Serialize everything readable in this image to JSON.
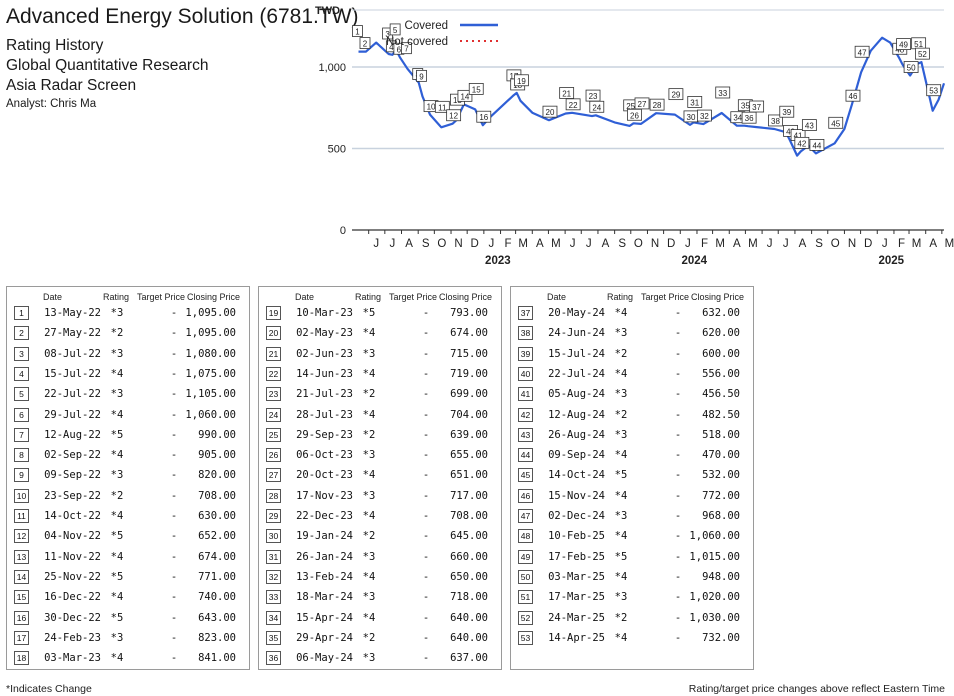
{
  "header": {
    "title": "Advanced Energy Solution (6781.TW)",
    "line1": "Rating History",
    "line2": "Global Quantitative Research",
    "line3": "Asia Radar Screen",
    "analyst": "Analyst: Chris Ma"
  },
  "footer": {
    "left": "*Indicates Change",
    "right": "Rating/target price changes above reflect Eastern Time"
  },
  "table_headers": {
    "date": "Date",
    "rating": "Rating",
    "target": "Target Price",
    "close": "Closing Price"
  },
  "colors": {
    "covered": "#2f5fd6",
    "not_covered": "#e03030",
    "grid": "#c8d2de",
    "axis": "#333333"
  },
  "chart_data": {
    "type": "line",
    "y_unit_label": "TWD",
    "ylim": [
      0,
      1350
    ],
    "yticks": [
      0,
      500,
      "1,000"
    ],
    "x_range": [
      "2022-05-01",
      "2025-05-05"
    ],
    "month_ticks": [
      "J",
      "J",
      "A",
      "S",
      "O",
      "N",
      "D",
      "J",
      "F",
      "M",
      "A",
      "M",
      "J",
      "J",
      "A",
      "S",
      "O",
      "N",
      "D",
      "J",
      "F",
      "M",
      "A",
      "M",
      "J",
      "J",
      "A",
      "S",
      "O",
      "N",
      "D",
      "J",
      "F",
      "M",
      "A",
      "M"
    ],
    "year_labels": [
      "2023",
      "2024",
      "2025"
    ],
    "legend": [
      {
        "name": "Covered",
        "style": "solid"
      },
      {
        "name": "Not covered",
        "style": "dotted"
      }
    ],
    "series": [
      {
        "name": "Covered",
        "x": [
          "2022-05-13",
          "2022-05-27",
          "2022-06-15",
          "2022-07-08",
          "2022-07-15",
          "2022-07-22",
          "2022-07-29",
          "2022-08-12",
          "2022-09-02",
          "2022-09-09",
          "2022-09-23",
          "2022-10-14",
          "2022-11-04",
          "2022-11-11",
          "2022-11-25",
          "2022-12-16",
          "2022-12-30",
          "2023-01-15",
          "2023-02-24",
          "2023-03-03",
          "2023-03-10",
          "2023-04-01",
          "2023-05-02",
          "2023-06-02",
          "2023-06-14",
          "2023-07-21",
          "2023-07-28",
          "2023-09-01",
          "2023-09-29",
          "2023-10-06",
          "2023-10-20",
          "2023-11-17",
          "2023-12-22",
          "2024-01-19",
          "2024-01-26",
          "2024-02-13",
          "2024-03-18",
          "2024-04-15",
          "2024-04-29",
          "2024-05-06",
          "2024-05-20",
          "2024-06-24",
          "2024-07-15",
          "2024-07-22",
          "2024-08-05",
          "2024-08-12",
          "2024-08-26",
          "2024-09-09",
          "2024-10-14",
          "2024-11-01",
          "2024-11-15",
          "2024-12-02",
          "2024-12-20",
          "2025-01-10",
          "2025-01-25",
          "2025-02-10",
          "2025-02-17",
          "2025-03-03",
          "2025-03-17",
          "2025-03-24",
          "2025-04-14",
          "2025-04-25",
          "2025-05-05"
        ],
        "y": [
          1095,
          1095,
          1150,
          1080,
          1075,
          1105,
          1060,
          990,
          905,
          820,
          708,
          630,
          652,
          674,
          771,
          740,
          643,
          700,
          823,
          841,
          793,
          720,
          674,
          715,
          719,
          699,
          704,
          660,
          639,
          655,
          651,
          717,
          708,
          645,
          660,
          650,
          718,
          640,
          640,
          637,
          632,
          620,
          600,
          556,
          456.5,
          482.5,
          518,
          470,
          532,
          620,
          772,
          968,
          1100,
          1180,
          1150,
          1060,
          1015,
          948,
          1020,
          1030,
          732,
          800,
          900
        ]
      }
    ],
    "rating_points": [
      {
        "n": "1",
        "date": "13-May-22",
        "rating": "*3",
        "target": "-",
        "close": "1,095.00",
        "x": "2022-05-13",
        "y": 1095
      },
      {
        "n": "2",
        "date": "27-May-22",
        "rating": "*2",
        "target": "-",
        "close": "1,095.00",
        "x": "2022-05-27",
        "y": 1095
      },
      {
        "n": "3",
        "date": "08-Jul-22",
        "rating": "*3",
        "target": "-",
        "close": "1,080.00",
        "x": "2022-07-08",
        "y": 1080
      },
      {
        "n": "4",
        "date": "15-Jul-22",
        "rating": "*4",
        "target": "-",
        "close": "1,075.00",
        "x": "2022-07-15",
        "y": 1075
      },
      {
        "n": "5",
        "date": "22-Jul-22",
        "rating": "*3",
        "target": "-",
        "close": "1,105.00",
        "x": "2022-07-22",
        "y": 1105
      },
      {
        "n": "6",
        "date": "29-Jul-22",
        "rating": "*4",
        "target": "-",
        "close": "1,060.00",
        "x": "2022-07-29",
        "y": 1060
      },
      {
        "n": "7",
        "date": "12-Aug-22",
        "rating": "*5",
        "target": "-",
        "close": "990.00",
        "x": "2022-08-12",
        "y": 990
      },
      {
        "n": "8",
        "date": "02-Sep-22",
        "rating": "*4",
        "target": "-",
        "close": "905.00",
        "x": "2022-09-02",
        "y": 905
      },
      {
        "n": "9",
        "date": "09-Sep-22",
        "rating": "*3",
        "target": "-",
        "close": "820.00",
        "x": "2022-09-09",
        "y": 820
      },
      {
        "n": "10",
        "date": "23-Sep-22",
        "rating": "*2",
        "target": "-",
        "close": "708.00",
        "x": "2022-09-23",
        "y": 708
      },
      {
        "n": "11",
        "date": "14-Oct-22",
        "rating": "*4",
        "target": "-",
        "close": "630.00",
        "x": "2022-10-14",
        "y": 630
      },
      {
        "n": "12",
        "date": "04-Nov-22",
        "rating": "*5",
        "target": "-",
        "close": "652.00",
        "x": "2022-11-04",
        "y": 652
      },
      {
        "n": "13",
        "date": "11-Nov-22",
        "rating": "*4",
        "target": "-",
        "close": "674.00",
        "x": "2022-11-11",
        "y": 674
      },
      {
        "n": "14",
        "date": "25-Nov-22",
        "rating": "*5",
        "target": "-",
        "close": "771.00",
        "x": "2022-11-25",
        "y": 771
      },
      {
        "n": "15",
        "date": "16-Dec-22",
        "rating": "*4",
        "target": "-",
        "close": "740.00",
        "x": "2022-12-16",
        "y": 740
      },
      {
        "n": "16",
        "date": "30-Dec-22",
        "rating": "*5",
        "target": "-",
        "close": "643.00",
        "x": "2022-12-30",
        "y": 643
      },
      {
        "n": "17",
        "date": "24-Feb-23",
        "rating": "*3",
        "target": "-",
        "close": "823.00",
        "x": "2023-02-24",
        "y": 823
      },
      {
        "n": "18",
        "date": "03-Mar-23",
        "rating": "*4",
        "target": "-",
        "close": "841.00",
        "x": "2023-03-03",
        "y": 841
      },
      {
        "n": "19",
        "date": "10-Mar-23",
        "rating": "*5",
        "target": "-",
        "close": "793.00",
        "x": "2023-03-10",
        "y": 793
      },
      {
        "n": "20",
        "date": "02-May-23",
        "rating": "*4",
        "target": "-",
        "close": "674.00",
        "x": "2023-05-02",
        "y": 674
      },
      {
        "n": "21",
        "date": "02-Jun-23",
        "rating": "*3",
        "target": "-",
        "close": "715.00",
        "x": "2023-06-02",
        "y": 715
      },
      {
        "n": "22",
        "date": "14-Jun-23",
        "rating": "*4",
        "target": "-",
        "close": "719.00",
        "x": "2023-06-14",
        "y": 719
      },
      {
        "n": "23",
        "date": "21-Jul-23",
        "rating": "*2",
        "target": "-",
        "close": "699.00",
        "x": "2023-07-21",
        "y": 699
      },
      {
        "n": "24",
        "date": "28-Jul-23",
        "rating": "*4",
        "target": "-",
        "close": "704.00",
        "x": "2023-07-28",
        "y": 704
      },
      {
        "n": "25",
        "date": "29-Sep-23",
        "rating": "*2",
        "target": "-",
        "close": "639.00",
        "x": "2023-09-29",
        "y": 639
      },
      {
        "n": "26",
        "date": "06-Oct-23",
        "rating": "*3",
        "target": "-",
        "close": "655.00",
        "x": "2023-10-06",
        "y": 655
      },
      {
        "n": "27",
        "date": "20-Oct-23",
        "rating": "*4",
        "target": "-",
        "close": "651.00",
        "x": "2023-10-20",
        "y": 651
      },
      {
        "n": "28",
        "date": "17-Nov-23",
        "rating": "*3",
        "target": "-",
        "close": "717.00",
        "x": "2023-11-17",
        "y": 717
      },
      {
        "n": "29",
        "date": "22-Dec-23",
        "rating": "*4",
        "target": "-",
        "close": "708.00",
        "x": "2023-12-22",
        "y": 708
      },
      {
        "n": "30",
        "date": "19-Jan-24",
        "rating": "*2",
        "target": "-",
        "close": "645.00",
        "x": "2024-01-19",
        "y": 645
      },
      {
        "n": "31",
        "date": "26-Jan-24",
        "rating": "*3",
        "target": "-",
        "close": "660.00",
        "x": "2024-01-26",
        "y": 660
      },
      {
        "n": "32",
        "date": "13-Feb-24",
        "rating": "*4",
        "target": "-",
        "close": "650.00",
        "x": "2024-02-13",
        "y": 650
      },
      {
        "n": "33",
        "date": "18-Mar-24",
        "rating": "*3",
        "target": "-",
        "close": "718.00",
        "x": "2024-03-18",
        "y": 718
      },
      {
        "n": "34",
        "date": "15-Apr-24",
        "rating": "*4",
        "target": "-",
        "close": "640.00",
        "x": "2024-04-15",
        "y": 640
      },
      {
        "n": "35",
        "date": "29-Apr-24",
        "rating": "*2",
        "target": "-",
        "close": "640.00",
        "x": "2024-04-29",
        "y": 640
      },
      {
        "n": "36",
        "date": "06-May-24",
        "rating": "*3",
        "target": "-",
        "close": "637.00",
        "x": "2024-05-06",
        "y": 637
      },
      {
        "n": "37",
        "date": "20-May-24",
        "rating": "*4",
        "target": "-",
        "close": "632.00",
        "x": "2024-05-20",
        "y": 632
      },
      {
        "n": "38",
        "date": "24-Jun-24",
        "rating": "*3",
        "target": "-",
        "close": "620.00",
        "x": "2024-06-24",
        "y": 620
      },
      {
        "n": "39",
        "date": "15-Jul-24",
        "rating": "*2",
        "target": "-",
        "close": "600.00",
        "x": "2024-07-15",
        "y": 600
      },
      {
        "n": "40",
        "date": "22-Jul-24",
        "rating": "*4",
        "target": "-",
        "close": "556.00",
        "x": "2024-07-22",
        "y": 556
      },
      {
        "n": "41",
        "date": "05-Aug-24",
        "rating": "*3",
        "target": "-",
        "close": "456.50",
        "x": "2024-08-05",
        "y": 456.5
      },
      {
        "n": "42",
        "date": "12-Aug-24",
        "rating": "*2",
        "target": "-",
        "close": "482.50",
        "x": "2024-08-12",
        "y": 482.5
      },
      {
        "n": "43",
        "date": "26-Aug-24",
        "rating": "*3",
        "target": "-",
        "close": "518.00",
        "x": "2024-08-26",
        "y": 518
      },
      {
        "n": "44",
        "date": "09-Sep-24",
        "rating": "*4",
        "target": "-",
        "close": "470.00",
        "x": "2024-09-09",
        "y": 470
      },
      {
        "n": "45",
        "date": "14-Oct-24",
        "rating": "*5",
        "target": "-",
        "close": "532.00",
        "x": "2024-10-14",
        "y": 532
      },
      {
        "n": "46",
        "date": "15-Nov-24",
        "rating": "*4",
        "target": "-",
        "close": "772.00",
        "x": "2024-11-15",
        "y": 772
      },
      {
        "n": "47",
        "date": "02-Dec-24",
        "rating": "*3",
        "target": "-",
        "close": "968.00",
        "x": "2024-12-02",
        "y": 968
      },
      {
        "n": "48",
        "date": "10-Feb-25",
        "rating": "*4",
        "target": "-",
        "close": "1,060.00",
        "x": "2025-02-10",
        "y": 1060
      },
      {
        "n": "49",
        "date": "17-Feb-25",
        "rating": "*5",
        "target": "-",
        "close": "1,015.00",
        "x": "2025-02-17",
        "y": 1015
      },
      {
        "n": "50",
        "date": "03-Mar-25",
        "rating": "*4",
        "target": "-",
        "close": "948.00",
        "x": "2025-03-03",
        "y": 948
      },
      {
        "n": "51",
        "date": "17-Mar-25",
        "rating": "*3",
        "target": "-",
        "close": "1,020.00",
        "x": "2025-03-17",
        "y": 1020
      },
      {
        "n": "52",
        "date": "24-Mar-25",
        "rating": "*2",
        "target": "-",
        "close": "1,030.00",
        "x": "2025-03-24",
        "y": 1030
      },
      {
        "n": "53",
        "date": "14-Apr-25",
        "rating": "*4",
        "target": "-",
        "close": "732.00",
        "x": "2025-04-14",
        "y": 732
      }
    ]
  }
}
